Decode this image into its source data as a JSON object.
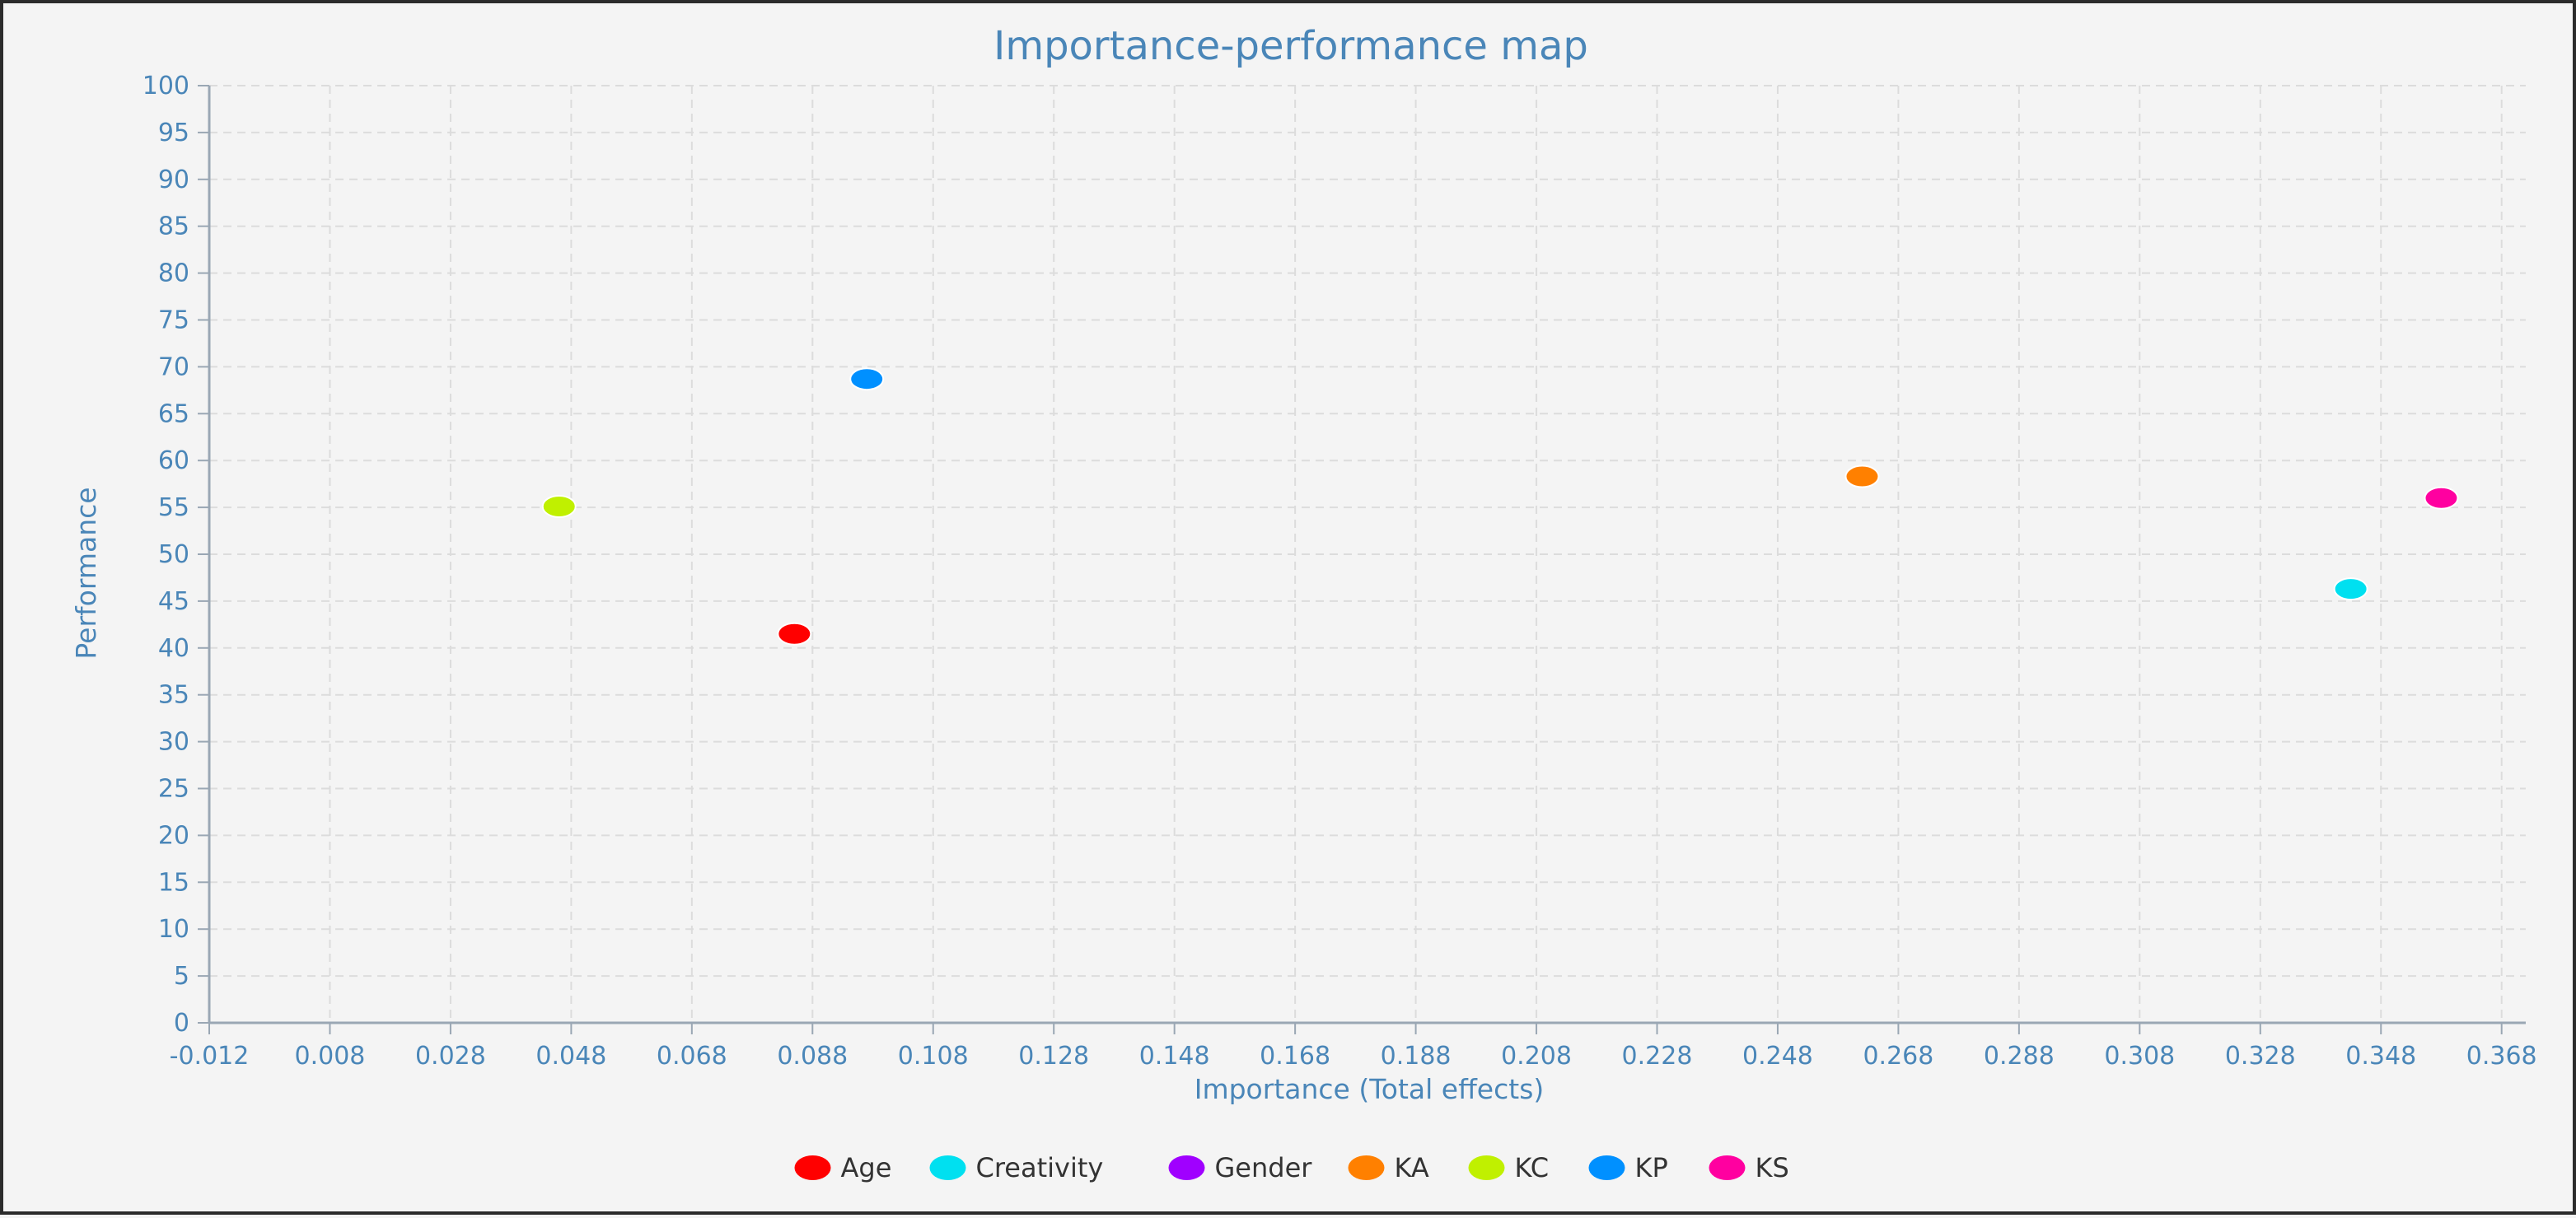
{
  "chart_data": {
    "type": "scatter",
    "title": "Importance-performance map",
    "xlabel": "Importance (Total effects)",
    "ylabel": "Performance",
    "xlim": [
      -0.012,
      0.372
    ],
    "ylim": [
      0,
      100
    ],
    "x_ticks": [
      "-0.012",
      "0.008",
      "0.028",
      "0.048",
      "0.068",
      "0.088",
      "0.108",
      "0.128",
      "0.148",
      "0.168",
      "0.188",
      "0.208",
      "0.228",
      "0.248",
      "0.268",
      "0.288",
      "0.308",
      "0.328",
      "0.348",
      "0.368"
    ],
    "y_ticks": [
      "0",
      "5",
      "10",
      "15",
      "20",
      "25",
      "30",
      "35",
      "40",
      "45",
      "50",
      "55",
      "60",
      "65",
      "70",
      "75",
      "80",
      "85",
      "90",
      "95",
      "100"
    ],
    "grid": true,
    "legend_position": "bottom",
    "series": [
      {
        "name": "Age",
        "color": "#ff0000",
        "points": [
          [
            0.085,
            41.5
          ]
        ]
      },
      {
        "name": "Creativity",
        "color": "#00e0f0",
        "points": [
          [
            0.343,
            46.3
          ]
        ]
      },
      {
        "name": "Gender",
        "color": "#a000ff",
        "points": []
      },
      {
        "name": "KA",
        "color": "#ff8000",
        "points": [
          [
            0.262,
            58.3
          ]
        ]
      },
      {
        "name": "KC",
        "color": "#c0f000",
        "points": [
          [
            0.046,
            55.1
          ]
        ]
      },
      {
        "name": "KP",
        "color": "#0090ff",
        "points": [
          [
            0.097,
            68.7
          ]
        ]
      },
      {
        "name": "KS",
        "color": "#ff00a0",
        "points": [
          [
            0.358,
            56.0
          ]
        ]
      }
    ]
  }
}
